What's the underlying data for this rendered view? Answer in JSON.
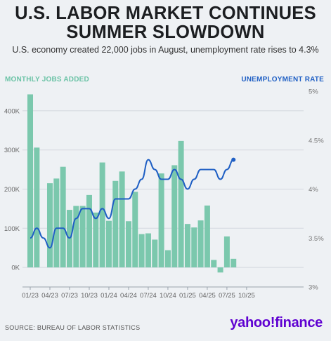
{
  "header": {
    "title_line1": "U.S. LABOR MARKET CONTINUES",
    "title_line2": "SUMMER SLOWDOWN",
    "subtitle": "U.S. economy created 22,000 jobs in August, unemployment rate rises to 4.3%"
  },
  "footer": {
    "source": "SOURCE: BUREAU OF LABOR STATISTICS",
    "brand": "yahoo!finance"
  },
  "colors": {
    "bars": "#7bc8ad",
    "line": "#1f5fc4",
    "left_axis_label": "#6bc3a6",
    "right_axis_label": "#1f5fc4"
  },
  "chart_data": {
    "type": "bar",
    "ylabel": "MONTHLY JOBS ADDED",
    "y2label": "UNEMPLOYMENT RATE",
    "ylim": [
      -50000,
      450000
    ],
    "y2lim": [
      3,
      5
    ],
    "y_ticks": [
      "0K",
      "100K",
      "200K",
      "300K",
      "400K"
    ],
    "y2_ticks": [
      "3%",
      "3.5%",
      "4%",
      "4.5%",
      "5%"
    ],
    "x_ticks": [
      "01/23",
      "04/23",
      "07/23",
      "10/23",
      "01/24",
      "04/24",
      "07/24",
      "10/24",
      "01/25",
      "04/25",
      "07/25",
      "10/25"
    ],
    "grid": true,
    "categories": [
      "2023-01",
      "2023-02",
      "2023-03",
      "2023-04",
      "2023-05",
      "2023-06",
      "2023-07",
      "2023-08",
      "2023-09",
      "2023-10",
      "2023-11",
      "2023-12",
      "2024-01",
      "2024-02",
      "2024-03",
      "2024-04",
      "2024-05",
      "2024-06",
      "2024-07",
      "2024-08",
      "2024-09",
      "2024-10",
      "2024-11",
      "2024-12",
      "2025-01",
      "2025-02",
      "2025-03",
      "2025-04",
      "2025-05",
      "2025-06",
      "2025-07",
      "2025-08"
    ],
    "series": [
      {
        "name": "MONTHLY JOBS ADDED",
        "type": "bar",
        "values": [
          442000,
          306000,
          0,
          215000,
          227000,
          257000,
          147000,
          157000,
          157000,
          185000,
          140000,
          268000,
          119000,
          221000,
          245000,
          118000,
          193000,
          85000,
          87000,
          71000,
          240000,
          44000,
          261000,
          323000,
          111000,
          102000,
          120000,
          158000,
          19000,
          -13000,
          79000,
          22000
        ]
      },
      {
        "name": "UNEMPLOYMENT RATE",
        "type": "line",
        "values": [
          3.5,
          3.6,
          3.5,
          3.4,
          3.6,
          3.6,
          3.5,
          3.7,
          3.8,
          3.8,
          3.7,
          3.8,
          3.7,
          3.9,
          3.9,
          3.9,
          4.0,
          4.1,
          4.3,
          4.2,
          4.1,
          4.1,
          4.2,
          4.1,
          4.0,
          4.1,
          4.2,
          4.2,
          4.2,
          4.1,
          4.2,
          4.3
        ]
      }
    ]
  }
}
